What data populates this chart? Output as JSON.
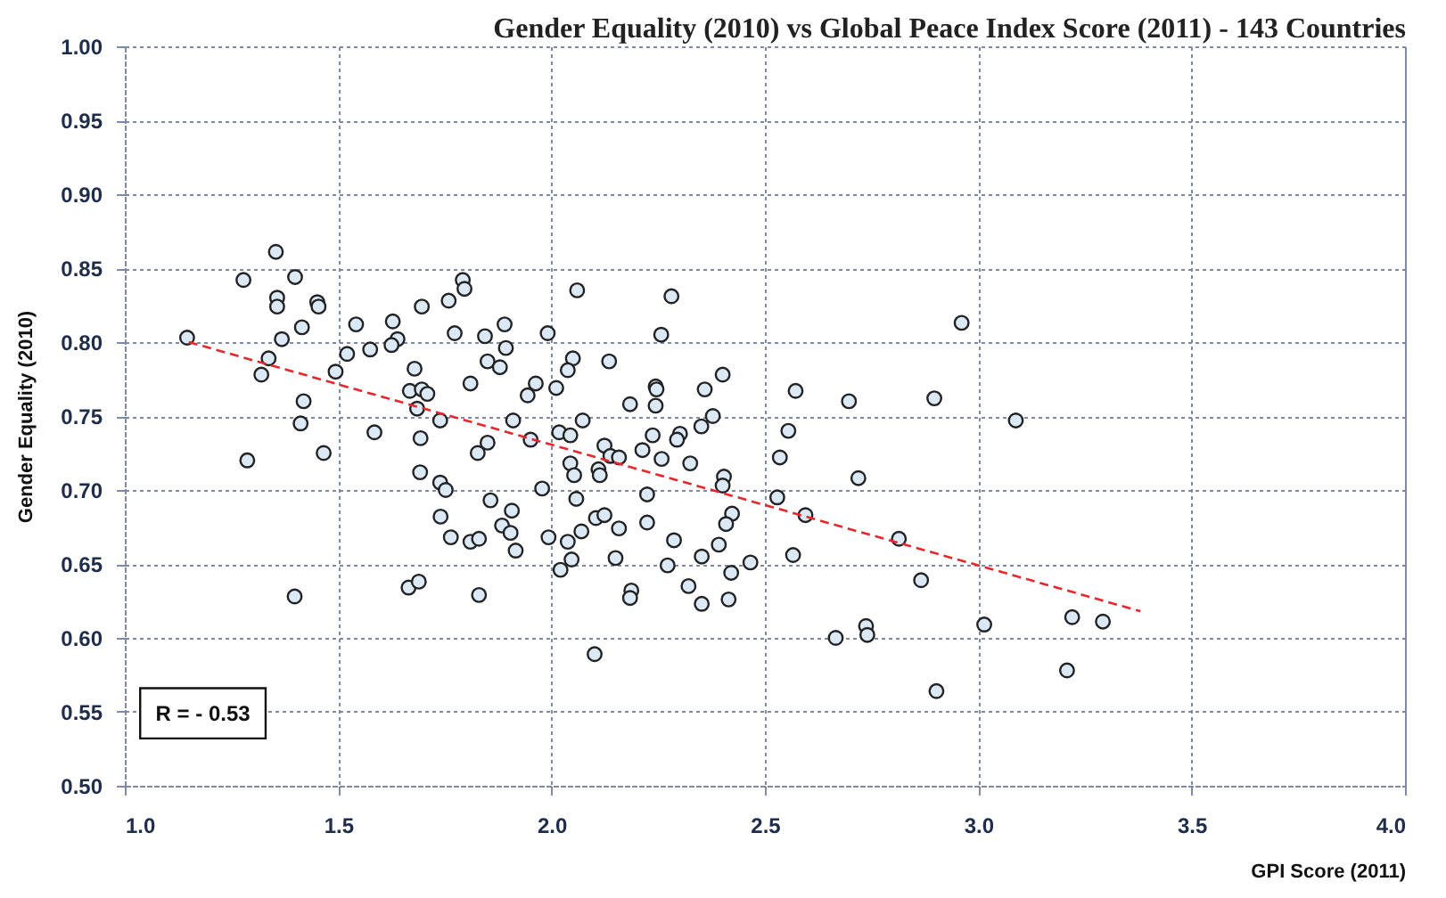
{
  "chart_data": {
    "type": "scatter",
    "title": "Gender Equality (2010) vs Global Peace Index Score (2011) - 143 Countries",
    "xlabel": "GPI Score (2011)",
    "ylabel": "Gender Equality (2010)",
    "xlim": [
      1.0,
      4.0
    ],
    "ylim": [
      0.5,
      1.0
    ],
    "xticks": [
      {
        "value": 1,
        "label": "1.0"
      },
      {
        "value": 1.5,
        "label": "1.5"
      },
      {
        "value": 2,
        "label": "2.0"
      },
      {
        "value": 2.5,
        "label": "2.5"
      },
      {
        "value": 3,
        "label": "3.0"
      },
      {
        "value": 3.5,
        "label": "3.5"
      },
      {
        "value": 4,
        "label": "4.0"
      }
    ],
    "yticks": [
      {
        "value": 0.5,
        "label": "0.50"
      },
      {
        "value": 0.55,
        "label": "0.55"
      },
      {
        "value": 0.6,
        "label": "0.60"
      },
      {
        "value": 0.65,
        "label": "0.65"
      },
      {
        "value": 0.7,
        "label": "0.70"
      },
      {
        "value": 0.75,
        "label": "0.75"
      },
      {
        "value": 0.8,
        "label": "0.80"
      },
      {
        "value": 0.85,
        "label": "0.85"
      },
      {
        "value": 0.9,
        "label": "0.90"
      },
      {
        "value": 0.95,
        "label": "0.95"
      },
      {
        "value": 1.0,
        "label": "1.00"
      }
    ],
    "grid": true,
    "marker": "circle",
    "annotations": [
      "R = - 0.53"
    ],
    "series": [
      {
        "color": "#dbe9f6",
        "x": [
          1.354,
          1.278,
          1.399,
          1.357,
          1.357,
          1.451,
          1.454,
          1.696,
          1.415,
          1.542,
          1.628,
          1.146,
          1.368,
          1.639,
          1.625,
          1.575,
          1.337,
          1.32,
          1.521,
          1.494,
          1.679,
          1.668,
          1.696,
          1.709,
          1.685,
          1.419,
          1.412,
          1.585,
          1.693,
          1.287,
          1.466,
          1.692,
          1.665,
          1.689,
          1.398,
          1.792,
          1.796,
          1.759,
          2.06,
          2.281,
          1.773,
          1.844,
          1.89,
          1.893,
          1.991,
          2.257,
          1.85,
          1.879,
          2.05,
          2.038,
          2.135,
          1.81,
          1.963,
          1.944,
          2.011,
          2.401,
          2.244,
          2.246,
          2.359,
          2.184,
          2.244,
          2.378,
          2.351,
          1.739,
          1.91,
          2.073,
          2.018,
          2.044,
          1.951,
          1.85,
          1.827,
          2.124,
          2.237,
          2.301,
          2.294,
          2.213,
          2.138,
          2.158,
          2.258,
          2.325,
          2.044,
          2.053,
          2.11,
          2.113,
          2.404,
          2.401,
          1.739,
          1.752,
          1.978,
          2.224,
          1.857,
          2.058,
          2.423,
          1.907,
          1.74,
          1.884,
          1.904,
          1.764,
          1.81,
          1.83,
          1.916,
          1.993,
          2.07,
          2.038,
          2.104,
          2.124,
          2.158,
          2.224,
          2.287,
          2.409,
          2.392,
          2.352,
          2.15,
          2.047,
          2.021,
          2.272,
          2.421,
          2.466,
          2.321,
          2.352,
          2.415,
          2.187,
          2.184,
          1.83,
          2.101,
          2.961,
          2.572,
          2.697,
          2.897,
          3.088,
          2.555,
          2.535,
          2.719,
          2.529,
          2.595,
          2.566,
          2.814,
          2.866,
          2.666,
          2.737,
          2.74,
          3.014,
          3.22,
          3.292,
          3.208,
          2.902
        ],
        "values": [
          0.861,
          0.842,
          0.844,
          0.83,
          0.824,
          0.827,
          0.824,
          0.824,
          0.81,
          0.812,
          0.814,
          0.803,
          0.802,
          0.802,
          0.798,
          0.795,
          0.789,
          0.778,
          0.792,
          0.78,
          0.782,
          0.767,
          0.768,
          0.765,
          0.755,
          0.76,
          0.745,
          0.739,
          0.735,
          0.72,
          0.725,
          0.712,
          0.634,
          0.638,
          0.628,
          0.842,
          0.836,
          0.828,
          0.835,
          0.831,
          0.806,
          0.804,
          0.812,
          0.796,
          0.806,
          0.805,
          0.787,
          0.783,
          0.789,
          0.781,
          0.787,
          0.772,
          0.772,
          0.764,
          0.769,
          0.778,
          0.77,
          0.768,
          0.768,
          0.758,
          0.757,
          0.75,
          0.743,
          0.747,
          0.747,
          0.747,
          0.739,
          0.737,
          0.734,
          0.732,
          0.725,
          0.73,
          0.737,
          0.738,
          0.734,
          0.727,
          0.723,
          0.722,
          0.721,
          0.718,
          0.718,
          0.71,
          0.714,
          0.71,
          0.709,
          0.703,
          0.705,
          0.7,
          0.701,
          0.697,
          0.693,
          0.694,
          0.684,
          0.686,
          0.682,
          0.676,
          0.671,
          0.668,
          0.665,
          0.667,
          0.659,
          0.668,
          0.672,
          0.665,
          0.681,
          0.683,
          0.674,
          0.678,
          0.666,
          0.677,
          0.663,
          0.655,
          0.654,
          0.653,
          0.646,
          0.649,
          0.644,
          0.651,
          0.635,
          0.623,
          0.626,
          0.632,
          0.627,
          0.629,
          0.589,
          0.813,
          0.767,
          0.76,
          0.762,
          0.747,
          0.74,
          0.722,
          0.708,
          0.695,
          0.683,
          0.656,
          0.667,
          0.639,
          0.6,
          0.608,
          0.602,
          0.609,
          0.614,
          0.611,
          0.578,
          0.564
        ]
      },
      {
        "type": "line",
        "color": "#e8262b",
        "line_style": "dashed",
        "marker": "none",
        "x": [
          1.15,
          3.38
        ],
        "values": [
          0.8,
          0.618
        ]
      }
    ]
  }
}
